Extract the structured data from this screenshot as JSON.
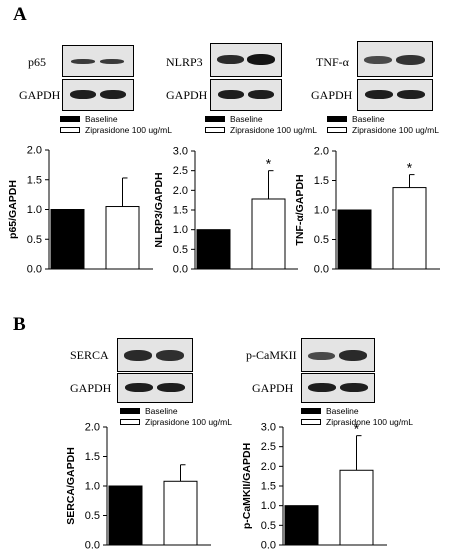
{
  "panels": [
    {
      "letter": "A",
      "blots": [
        "p65",
        "GAPDH",
        "NLRP3",
        "GAPDH",
        "TNF-α",
        "GAPDH"
      ]
    },
    {
      "letter": "B",
      "blots": [
        "SERCA",
        "GAPDH",
        "p-CaMKII",
        "GAPDH"
      ]
    }
  ],
  "legend": {
    "baseline": "Baseline",
    "treatment": "Ziprasidone 100 ug/mL"
  },
  "colors": {
    "baseline": "#000000",
    "treatment": "#ffffff",
    "band": "#1e1e1e"
  },
  "chart_data": [
    {
      "type": "bar",
      "categories": [
        "Baseline",
        "Ziprasidone 100 ug/mL"
      ],
      "values": [
        1.0,
        1.05
      ],
      "errors": [
        0,
        0.48
      ],
      "ylabel": "p65/GAPDH",
      "ylim": [
        0,
        2.0
      ],
      "ticks": [
        "0.0",
        "0.5",
        "1.0",
        "1.5",
        "2.0"
      ],
      "annotation": ""
    },
    {
      "type": "bar",
      "categories": [
        "Baseline",
        "Ziprasidone 100 ug/mL"
      ],
      "values": [
        1.0,
        1.78
      ],
      "errors": [
        0,
        0.72
      ],
      "ylabel": "NLRP3/GAPDH",
      "ylim": [
        0,
        3.0
      ],
      "ticks": [
        "0.0",
        "0.5",
        "1.0",
        "1.5",
        "2.0",
        "2.5",
        "3.0"
      ],
      "annotation": "*"
    },
    {
      "type": "bar",
      "categories": [
        "Baseline",
        "Ziprasidone 100 ug/mL"
      ],
      "values": [
        1.0,
        1.38
      ],
      "errors": [
        0,
        0.22
      ],
      "ylabel": "TNF-α/GAPDH",
      "ylim": [
        0,
        2.0
      ],
      "ticks": [
        "0.0",
        "0.5",
        "1.0",
        "1.5",
        "2.0"
      ],
      "annotation": "*"
    },
    {
      "type": "bar",
      "categories": [
        "Baseline",
        "Ziprasidone 100 ug/mL"
      ],
      "values": [
        1.0,
        1.08
      ],
      "errors": [
        0,
        0.28
      ],
      "ylabel": "SERCA/GAPDH",
      "ylim": [
        0,
        2.0
      ],
      "ticks": [
        "0.0",
        "0.5",
        "1.0",
        "1.5",
        "2.0"
      ],
      "annotation": ""
    },
    {
      "type": "bar",
      "categories": [
        "Baseline",
        "Ziprasidone 100 ug/mL"
      ],
      "values": [
        1.0,
        1.9
      ],
      "errors": [
        0,
        0.88
      ],
      "ylabel": "p-CaMKII/GAPDH",
      "ylim": [
        0,
        3.0
      ],
      "ticks": [
        "0.0",
        "0.5",
        "1.0",
        "1.5",
        "2.0",
        "2.5",
        "3.0"
      ],
      "annotation": "*"
    }
  ]
}
